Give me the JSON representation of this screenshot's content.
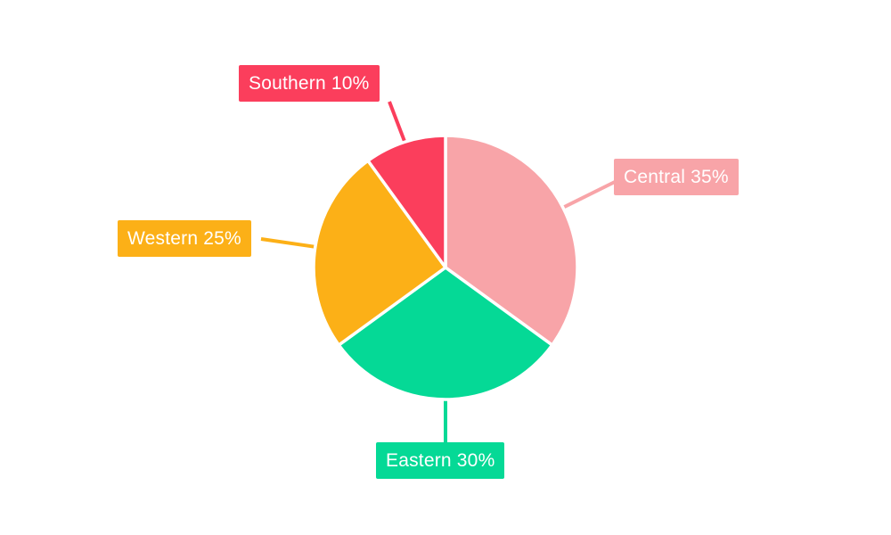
{
  "chart_data": {
    "type": "pie",
    "title": "",
    "categories": [
      "Central",
      "Eastern",
      "Western",
      "Southern"
    ],
    "values": [
      35,
      30,
      25,
      10
    ],
    "slices": [
      {
        "name": "Central",
        "label": "Central 35%",
        "value": 35,
        "color": "#F8A4A8"
      },
      {
        "name": "Eastern",
        "label": "Eastern 30%",
        "value": 30,
        "color": "#05D996"
      },
      {
        "name": "Western",
        "label": "Western 25%",
        "value": 25,
        "color": "#FCB017"
      },
      {
        "name": "Southern",
        "label": "Southern 10%",
        "value": 10,
        "color": "#FB3E5C"
      }
    ],
    "legend_position": "callout-labels",
    "start_angle_deg": 0,
    "direction": "clockwise",
    "label_text_color": "#FFFFFF",
    "slice_separator_color": "#FFFFFF",
    "background_color": "#FFFFFF"
  }
}
